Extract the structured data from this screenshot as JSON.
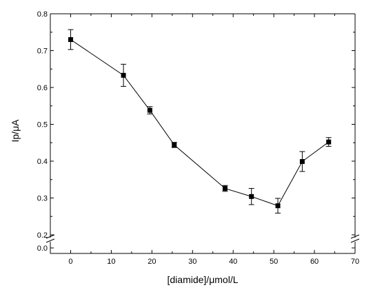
{
  "chart_data": {
    "type": "scatter",
    "title": "",
    "xlabel": "[diamide]/μmol/L",
    "ylabel": "Ip/μA",
    "xlim": [
      -5,
      70
    ],
    "ylim": [
      0.2,
      0.8
    ],
    "ylim_lower_segment": [
      0.0,
      0.0
    ],
    "axis_break": "y between 0.0 and 0.2",
    "x_ticks": [
      "0",
      "10",
      "20",
      "30",
      "40",
      "50",
      "60",
      "70"
    ],
    "y_ticks": [
      "0.2",
      "0.3",
      "0.4",
      "0.5",
      "0.6",
      "0.7",
      "0.8"
    ],
    "y_ticks_lower": [
      "0.0"
    ],
    "grid": false,
    "legend": "none",
    "line_connected": true,
    "marker": "square",
    "color": "#000000",
    "series": [
      {
        "x": [
          0,
          13,
          19.5,
          25.5,
          38,
          44.5,
          51,
          57,
          63.5
        ],
        "y": [
          0.73,
          0.633,
          0.538,
          0.444,
          0.326,
          0.304,
          0.279,
          0.399,
          0.452
        ],
        "yerr": [
          0.027,
          0.03,
          0.01,
          0.007,
          0.008,
          0.022,
          0.02,
          0.027,
          0.012
        ]
      }
    ]
  }
}
